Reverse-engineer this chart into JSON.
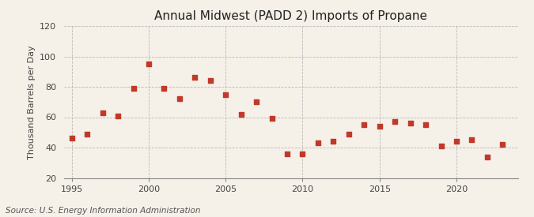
{
  "title": "Annual Midwest (PADD 2) Imports of Propane",
  "ylabel": "Thousand Barrels per Day",
  "source": "Source: U.S. Energy Information Administration",
  "background_color": "#f5f0e8",
  "plot_background_color": "#f5f0e8",
  "marker_color": "#c0392b",
  "years": [
    1995,
    1996,
    1997,
    1998,
    1999,
    2000,
    2001,
    2002,
    2003,
    2004,
    2005,
    2006,
    2007,
    2008,
    2009,
    2010,
    2011,
    2012,
    2013,
    2014,
    2015,
    2016,
    2017,
    2018,
    2019,
    2020,
    2021,
    2022,
    2023
  ],
  "values": [
    46,
    49,
    63,
    61,
    79,
    95,
    79,
    72,
    86,
    84,
    75,
    62,
    70,
    59,
    36,
    36,
    43,
    44,
    49,
    55,
    54,
    57,
    56,
    55,
    41,
    44,
    45,
    34,
    42
  ],
  "ylim": [
    20,
    120
  ],
  "yticks": [
    20,
    40,
    60,
    80,
    100,
    120
  ],
  "xlim": [
    1994.5,
    2024
  ],
  "xticks": [
    1995,
    2000,
    2005,
    2010,
    2015,
    2020
  ],
  "grid_color": "#bbbbbb",
  "title_fontsize": 11,
  "label_fontsize": 8,
  "tick_fontsize": 8,
  "source_fontsize": 7.5,
  "marker_size": 4,
  "vgrid_ticks": [
    1995,
    2000,
    2005,
    2010,
    2015,
    2020
  ]
}
